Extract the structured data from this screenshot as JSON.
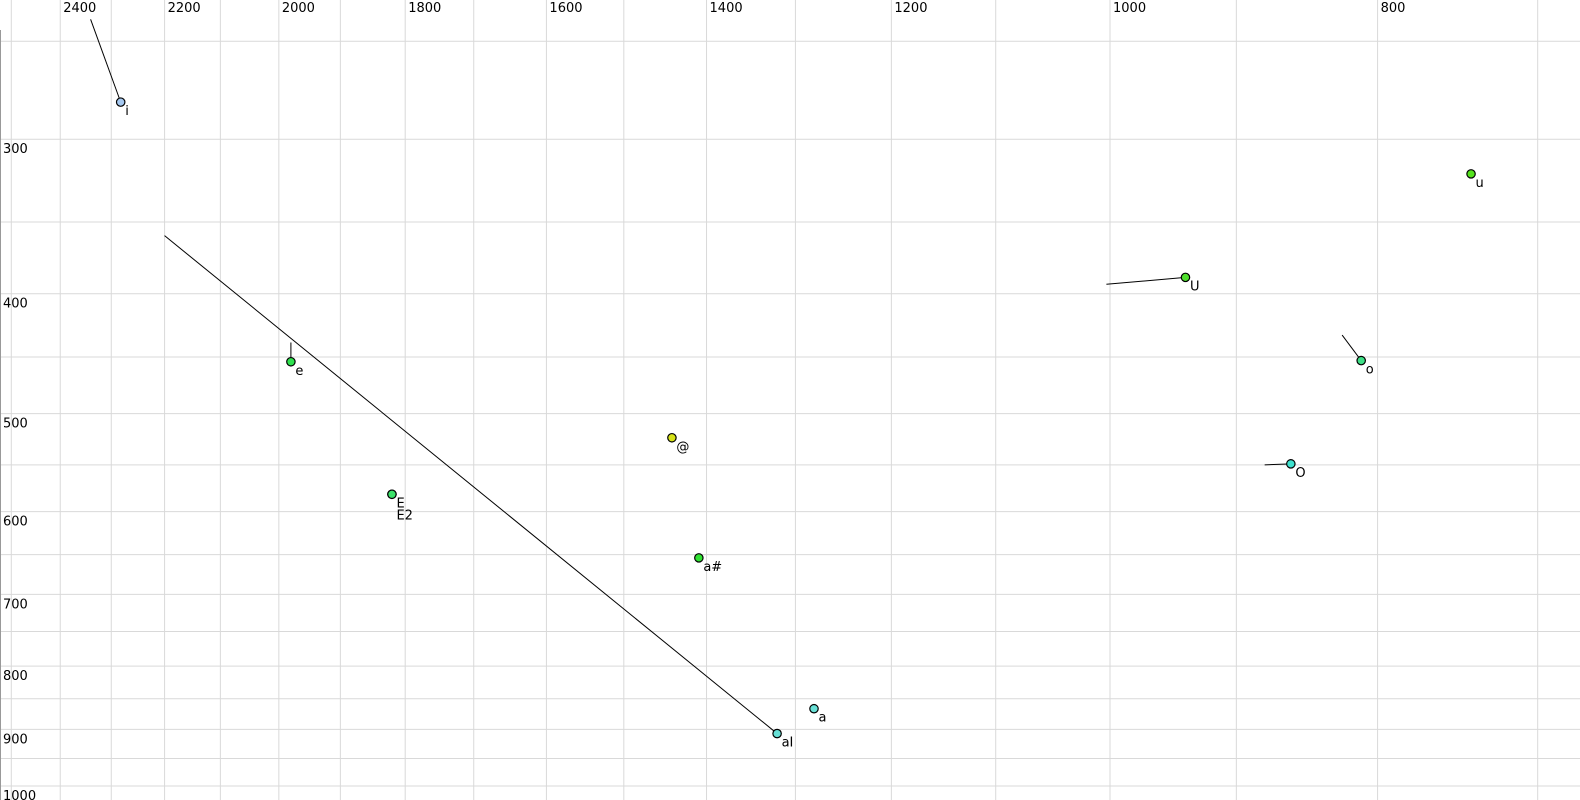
{
  "chart_data": {
    "type": "scatter",
    "title": "",
    "description": "Vowel formant plot: F2 (Hz) decreasing left-to-right on top axis, F1 (Hz) increasing top-to-bottom on left axis, both log-scaled; labelled vowel tokens with glide (diphthong) tail lines",
    "x_axis": {
      "unit": "Hz",
      "scale": "log",
      "direction": "values-decrease-rightward",
      "visible_range_hz": [
        2524,
        676
      ],
      "gridline_step_hz": 100,
      "tick_labels": [
        {
          "label": "2400",
          "hz": 2400
        },
        {
          "label": "2200",
          "hz": 2200
        },
        {
          "label": "2000",
          "hz": 2000
        },
        {
          "label": "1800",
          "hz": 1800
        },
        {
          "label": "1600",
          "hz": 1600
        },
        {
          "label": "1400",
          "hz": 1400
        },
        {
          "label": "1200",
          "hz": 1200
        },
        {
          "label": "1000",
          "hz": 1000
        },
        {
          "label": "800",
          "hz": 800
        }
      ]
    },
    "y_axis": {
      "unit": "Hz",
      "scale": "log",
      "direction": "values-increase-downward",
      "visible_range_hz": [
        232,
        1026
      ],
      "gridline_step_hz": 50,
      "tick_labels": [
        {
          "label": "300",
          "hz": 300
        },
        {
          "label": "400",
          "hz": 400
        },
        {
          "label": "500",
          "hz": 500
        },
        {
          "label": "600",
          "hz": 600
        },
        {
          "label": "700",
          "hz": 700
        },
        {
          "label": "800",
          "hz": 800
        },
        {
          "label": "900",
          "hz": 900
        },
        {
          "label": "1000",
          "hz": 1000
        }
      ]
    },
    "points": [
      {
        "label": "i",
        "f2": 2282,
        "f1": 280,
        "color": "#a5c8f0",
        "glide": {
          "f2": 2340,
          "f1": 240
        }
      },
      {
        "label": "e",
        "f2": 1980,
        "f1": 454,
        "color": "#2fe24f",
        "glide": {
          "f2": 1980,
          "f1": 438
        }
      },
      {
        "label": "E",
        "f2": 1820,
        "f1": 581,
        "color": "#3ce26a"
      },
      {
        "label": "E2",
        "f2": 1820,
        "f1": 581,
        "color": "#3ce26a",
        "label_row": 2
      },
      {
        "label": "@",
        "f2": 1441,
        "f1": 523,
        "color": "#d6e218"
      },
      {
        "label": "a#",
        "f2": 1409,
        "f1": 654,
        "color": "#30e233"
      },
      {
        "label": "aI",
        "f2": 1320,
        "f1": 907,
        "color": "#68e0d6",
        "glide": {
          "f2": 2200,
          "f1": 359
        }
      },
      {
        "label": "a",
        "f2": 1280,
        "f1": 866,
        "color": "#68e0d6"
      },
      {
        "label": "U",
        "f2": 939,
        "f1": 388,
        "color": "#4fdf2d",
        "glide": {
          "f2": 1003,
          "f1": 393
        }
      },
      {
        "label": "O",
        "f2": 860,
        "f1": 549,
        "color": "#3fe2cf",
        "glide": {
          "f2": 879,
          "f1": 550
        }
      },
      {
        "label": "o",
        "f2": 811,
        "f1": 453,
        "color": "#3edf86",
        "glide": {
          "f2": 824,
          "f1": 432
        }
      },
      {
        "label": "u",
        "f2": 740,
        "f1": 320,
        "color": "#55e31e"
      }
    ],
    "legend": null
  },
  "colors": {
    "background": "#ffffff",
    "grid_line": "#d9d9d9",
    "axis_spine": "#999999",
    "tick_text": "#000000",
    "point_outline": "#000000",
    "glide_line": "#000000"
  }
}
